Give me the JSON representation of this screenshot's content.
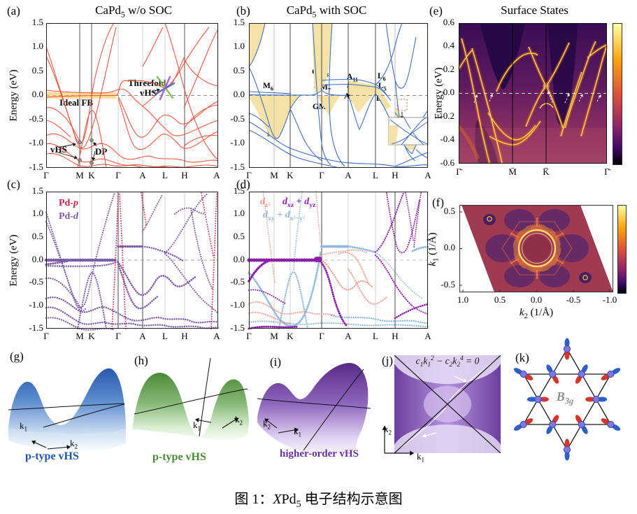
{
  "caption": "图 1：*X*Pd_{5} 电子结构示意图",
  "colors": {
    "band_red": "#e8523c",
    "band_blue": "#3a6bc0",
    "yellow_fill": "#f6e2a7",
    "flatband_highlight": "#ffc34d",
    "vhs_green": "#7cb342",
    "vhs_blue": "#3f62c0",
    "vhs_purple": "#9357c1",
    "pd_p_red": "#c3254d",
    "pd_d_purple": "#7b5ba5",
    "dz2_salmon": "#ef9287",
    "dxz_yz_purple": "#8b1fa8",
    "dxy_x2y2_blue": "#8fb8dc",
    "g_label_blue": "#2456a8",
    "h_label_green": "#4a8a35",
    "i_label_purple": "#6a2f9e",
    "orbital_red": "#d6352b",
    "orbital_blue": "#2d5fc4",
    "b3g_gray": "#909090",
    "heatmap_hot": "#ffd24a",
    "heatmap_bg": "#3a0d55"
  },
  "panel_a": {
    "tag": "(a)",
    "title": "CaPd_{5} w/o SOC",
    "ylabel": "Energy (eV)",
    "yticks": [
      "1.5",
      "1.0",
      "0.5",
      "0.0",
      "-0.5",
      "-1.0",
      "-1.5"
    ],
    "xticks": [
      "Γ",
      "M",
      "K",
      "Γ",
      "A",
      "L",
      "H",
      "A"
    ],
    "ann": {
      "ideal_fb": "Ideal FB",
      "threefold1": "Threefold",
      "threefold2": "vHS",
      "vhs": "vHS",
      "dp": "DP"
    }
  },
  "panel_b": {
    "tag": "(b)",
    "title": "CaPd_{5} with SOC",
    "yticks": [
      "1.5",
      "1.0",
      "0.5",
      "0.0",
      "-0.5",
      "-1.0",
      "-1.5"
    ],
    "xticks": [
      "Γ",
      "M",
      "K",
      "Γ",
      "A",
      "L",
      "H",
      "A"
    ],
    "labels": {
      "m6_upper": "M_{6}",
      "m6_lower": "M_{6}",
      "gm8": "GM_{8}",
      "gm7": "GM_{7}",
      "gm9": "GM_{9}",
      "a11": "A_{11}",
      "a10": "A_{10}",
      "a12": "A_{12}",
      "l6_upper": "L_{6}",
      "l5": "L_{5}",
      "l6_lower": "L_{6}"
    }
  },
  "panel_c": {
    "tag": "(c)",
    "ylabel": "Energy (eV)",
    "yticks": [
      "1.5",
      "1.0",
      "0.5",
      "0.0",
      "-0.5",
      "-1.0",
      "-1.5"
    ],
    "xticks": [
      "Γ",
      "M",
      "K",
      "Γ",
      "A",
      "L",
      "H",
      "A"
    ],
    "legend": {
      "pd_p": "Pd-*p*",
      "pd_d": "Pd-*d*"
    }
  },
  "panel_d": {
    "tag": "(d)",
    "yticks": [
      "1.5",
      "1.0",
      "0.5",
      "0.0",
      "-0.5",
      "-1.0",
      "-1.5"
    ],
    "xticks": [
      "Γ",
      "M",
      "K",
      "Γ",
      "A",
      "L",
      "H",
      "A"
    ],
    "legend": {
      "dz2": "*d*_{z²}",
      "dxz_yz": "*d*_{xz} + *d*_{yz}",
      "dxy_x2y2": "*d*_{xy} + *d*_{x²−y²}"
    }
  },
  "panel_e": {
    "tag": "(e)",
    "title": "Surface States",
    "ylabel": "Energy (eV)",
    "yticks": [
      "0.6",
      "0.4",
      "0.2",
      "0.0",
      "-0.2",
      "-0.4",
      "-0.6"
    ],
    "xticks": [
      "Γ̄",
      "M̄",
      "K̄",
      "Γ̄"
    ],
    "ann": {
      "alpha_l": "α",
      "beta_l": "β",
      "delta": "δ",
      "gamma": "γ",
      "beta_r": "β",
      "alpha_r": "α"
    }
  },
  "panel_f": {
    "tag": "(f)",
    "ylabel": "*k*_{1} (1/Å)",
    "xlabel": "*k*_{2} (1/Å)",
    "yticks": [
      "0.5",
      "0.0",
      "-0.5"
    ],
    "xticks": [
      "1.0",
      "0.5",
      "0.0",
      "-0.5",
      "-1.0"
    ],
    "ann": {
      "delta": "δ",
      "gamma": "γ",
      "beta": "β",
      "alpha": "α"
    }
  },
  "panel_g": {
    "tag": "(g)",
    "k1": "k_{1}",
    "k2": "k_{2}",
    "label": "p-type vHS"
  },
  "panel_h": {
    "tag": "(h)",
    "k1": "k_{1}",
    "k2": "k_{2}",
    "label": "p-type vHS"
  },
  "panel_i": {
    "tag": "(i)",
    "k1": "k_{1}",
    "k2": "k_{2}",
    "label": "higher-order vHS"
  },
  "panel_j": {
    "tag": "(j)",
    "equation": "c_{1}k_{1}^{2} − c_{2}k_{2}^{4} = 0",
    "k1": "k_{1}",
    "k2": "k_{2}"
  },
  "panel_k": {
    "tag": "(k)",
    "label": "*B*_{3g}"
  }
}
